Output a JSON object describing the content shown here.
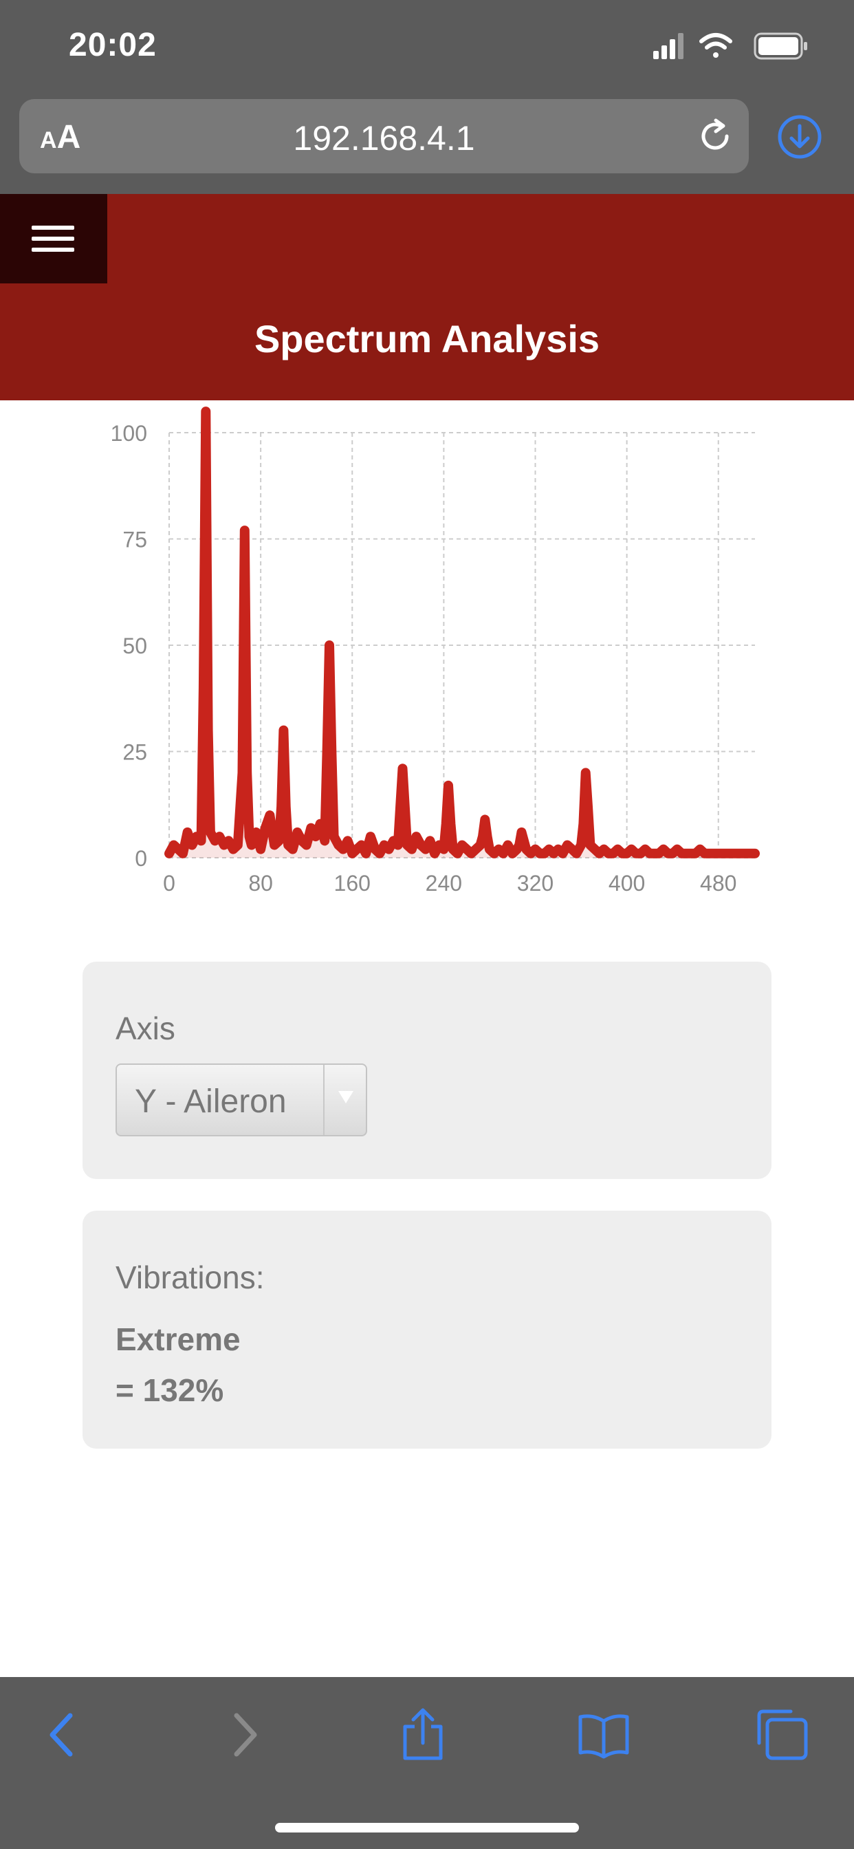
{
  "status_bar": {
    "time": "20:02",
    "icons": [
      "signal-icon",
      "wifi-icon",
      "battery-icon"
    ]
  },
  "browser": {
    "text_size_small": "A",
    "text_size_large": "A",
    "url": "192.168.4.1",
    "toolbar_icons": [
      "back-icon",
      "forward-icon",
      "share-icon",
      "bookmarks-icon",
      "tabs-icon"
    ]
  },
  "page": {
    "title": "Spectrum Analysis"
  },
  "axis_panel": {
    "label": "Axis",
    "selected": "Y - Aileron"
  },
  "vibration_panel": {
    "label": "Vibrations:",
    "level": "Extreme",
    "percent": "= 132%"
  },
  "colors": {
    "chrome": "#5b5b5b",
    "header": "#8c1b13",
    "menu_button": "#2b0505",
    "series": "#c8241c",
    "accent_blue": "#3d82f0"
  },
  "chart_data": {
    "type": "area",
    "xlim": [
      0,
      512
    ],
    "ylim": [
      0,
      100
    ],
    "x_ticks": [
      0,
      80,
      160,
      240,
      320,
      400,
      480
    ],
    "y_ticks": [
      0,
      25,
      50,
      75,
      100
    ],
    "grid": true,
    "series": [
      {
        "x": [
          0,
          4,
          8,
          12,
          16,
          20,
          24,
          28,
          30,
          32,
          34,
          36,
          40,
          44,
          48,
          52,
          56,
          60,
          64,
          66,
          68,
          70,
          72,
          76,
          80,
          84,
          88,
          92,
          96,
          98,
          100,
          102,
          104,
          108,
          112,
          116,
          120,
          124,
          128,
          132,
          136,
          138,
          140,
          142,
          144,
          148,
          152,
          156,
          160,
          164,
          168,
          172,
          176,
          180,
          184,
          188,
          192,
          196,
          200,
          202,
          204,
          206,
          208,
          212,
          216,
          220,
          224,
          228,
          232,
          236,
          240,
          242,
          244,
          246,
          248,
          252,
          256,
          260,
          264,
          268,
          272,
          274,
          276,
          278,
          280,
          284,
          288,
          292,
          296,
          300,
          304,
          306,
          308,
          310,
          312,
          316,
          320,
          324,
          328,
          332,
          336,
          340,
          344,
          348,
          352,
          356,
          360,
          362,
          364,
          366,
          368,
          372,
          376,
          380,
          384,
          388,
          392,
          396,
          400,
          404,
          408,
          412,
          416,
          420,
          424,
          428,
          432,
          436,
          440,
          444,
          448,
          452,
          456,
          460,
          464,
          468,
          472,
          476,
          480,
          484,
          488,
          492,
          496,
          500,
          504,
          508,
          512
        ],
        "y": [
          1,
          3,
          2,
          1,
          6,
          3,
          5,
          4,
          40,
          105,
          30,
          6,
          4,
          5,
          3,
          4,
          2,
          3,
          20,
          77,
          20,
          5,
          3,
          6,
          2,
          7,
          10,
          3,
          4,
          12,
          30,
          12,
          3,
          2,
          6,
          4,
          3,
          7,
          5,
          8,
          4,
          25,
          50,
          25,
          5,
          3,
          2,
          4,
          1,
          2,
          3,
          1,
          5,
          2,
          1,
          3,
          2,
          4,
          3,
          12,
          21,
          12,
          3,
          2,
          5,
          3,
          2,
          4,
          1,
          3,
          2,
          8,
          17,
          8,
          2,
          1,
          3,
          2,
          1,
          2,
          3,
          5,
          9,
          5,
          2,
          1,
          2,
          1,
          3,
          1,
          2,
          3,
          6,
          4,
          2,
          1,
          2,
          1,
          1,
          2,
          1,
          2,
          1,
          3,
          2,
          1,
          3,
          8,
          20,
          12,
          3,
          2,
          1,
          2,
          1,
          1,
          2,
          1,
          1,
          2,
          1,
          1,
          2,
          1,
          1,
          1,
          2,
          1,
          1,
          2,
          1,
          1,
          1,
          1,
          2,
          1,
          1,
          1,
          1,
          1,
          1,
          1,
          1,
          1,
          1,
          1,
          1
        ]
      }
    ]
  }
}
